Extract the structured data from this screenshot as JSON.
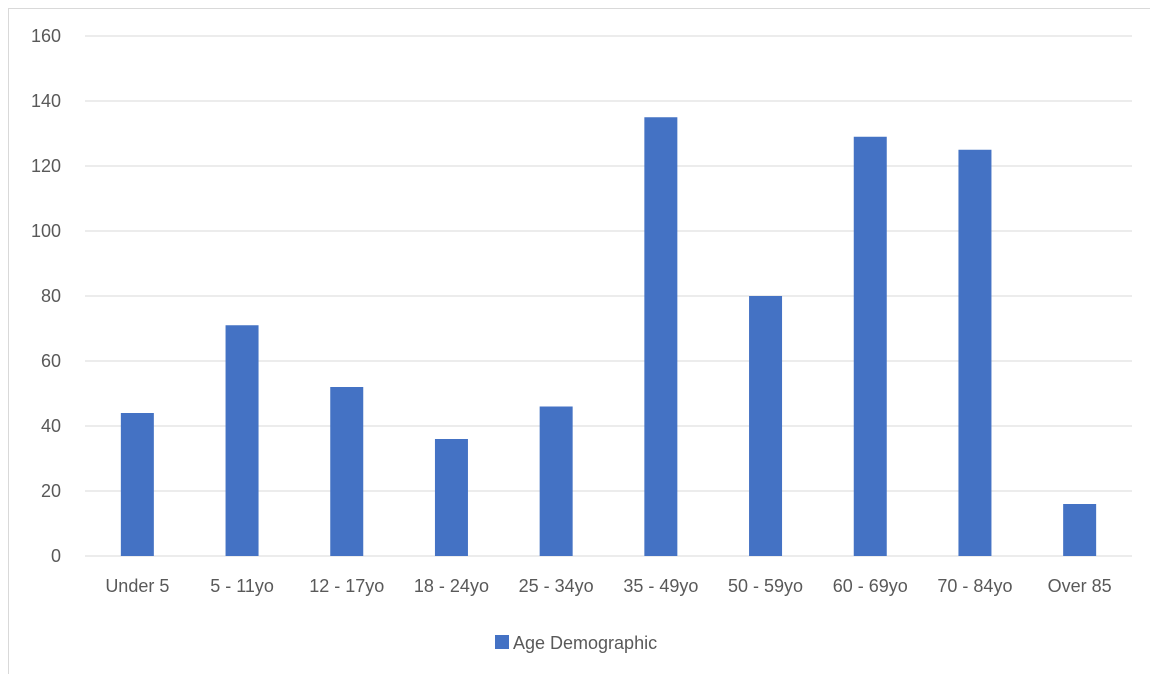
{
  "chart_data": {
    "type": "bar",
    "title": "",
    "xlabel": "",
    "ylabel": "",
    "categories": [
      "Under 5",
      "5 - 11yo",
      "12 - 17yo",
      "18 - 24yo",
      "25 - 34yo",
      "35 - 49yo",
      "50 - 59yo",
      "60 - 69yo",
      "70 - 84yo",
      "Over 85"
    ],
    "series": [
      {
        "name": "Age Demographic",
        "color": "#4472C4",
        "values": [
          44,
          71,
          52,
          36,
          46,
          135,
          80,
          129,
          125,
          16
        ]
      }
    ],
    "ylim": [
      0,
      160
    ],
    "yticks": [
      0,
      20,
      40,
      60,
      80,
      100,
      120,
      140,
      160
    ],
    "grid": true,
    "gridColor": "#d9d9d9",
    "legend": "bottom"
  }
}
